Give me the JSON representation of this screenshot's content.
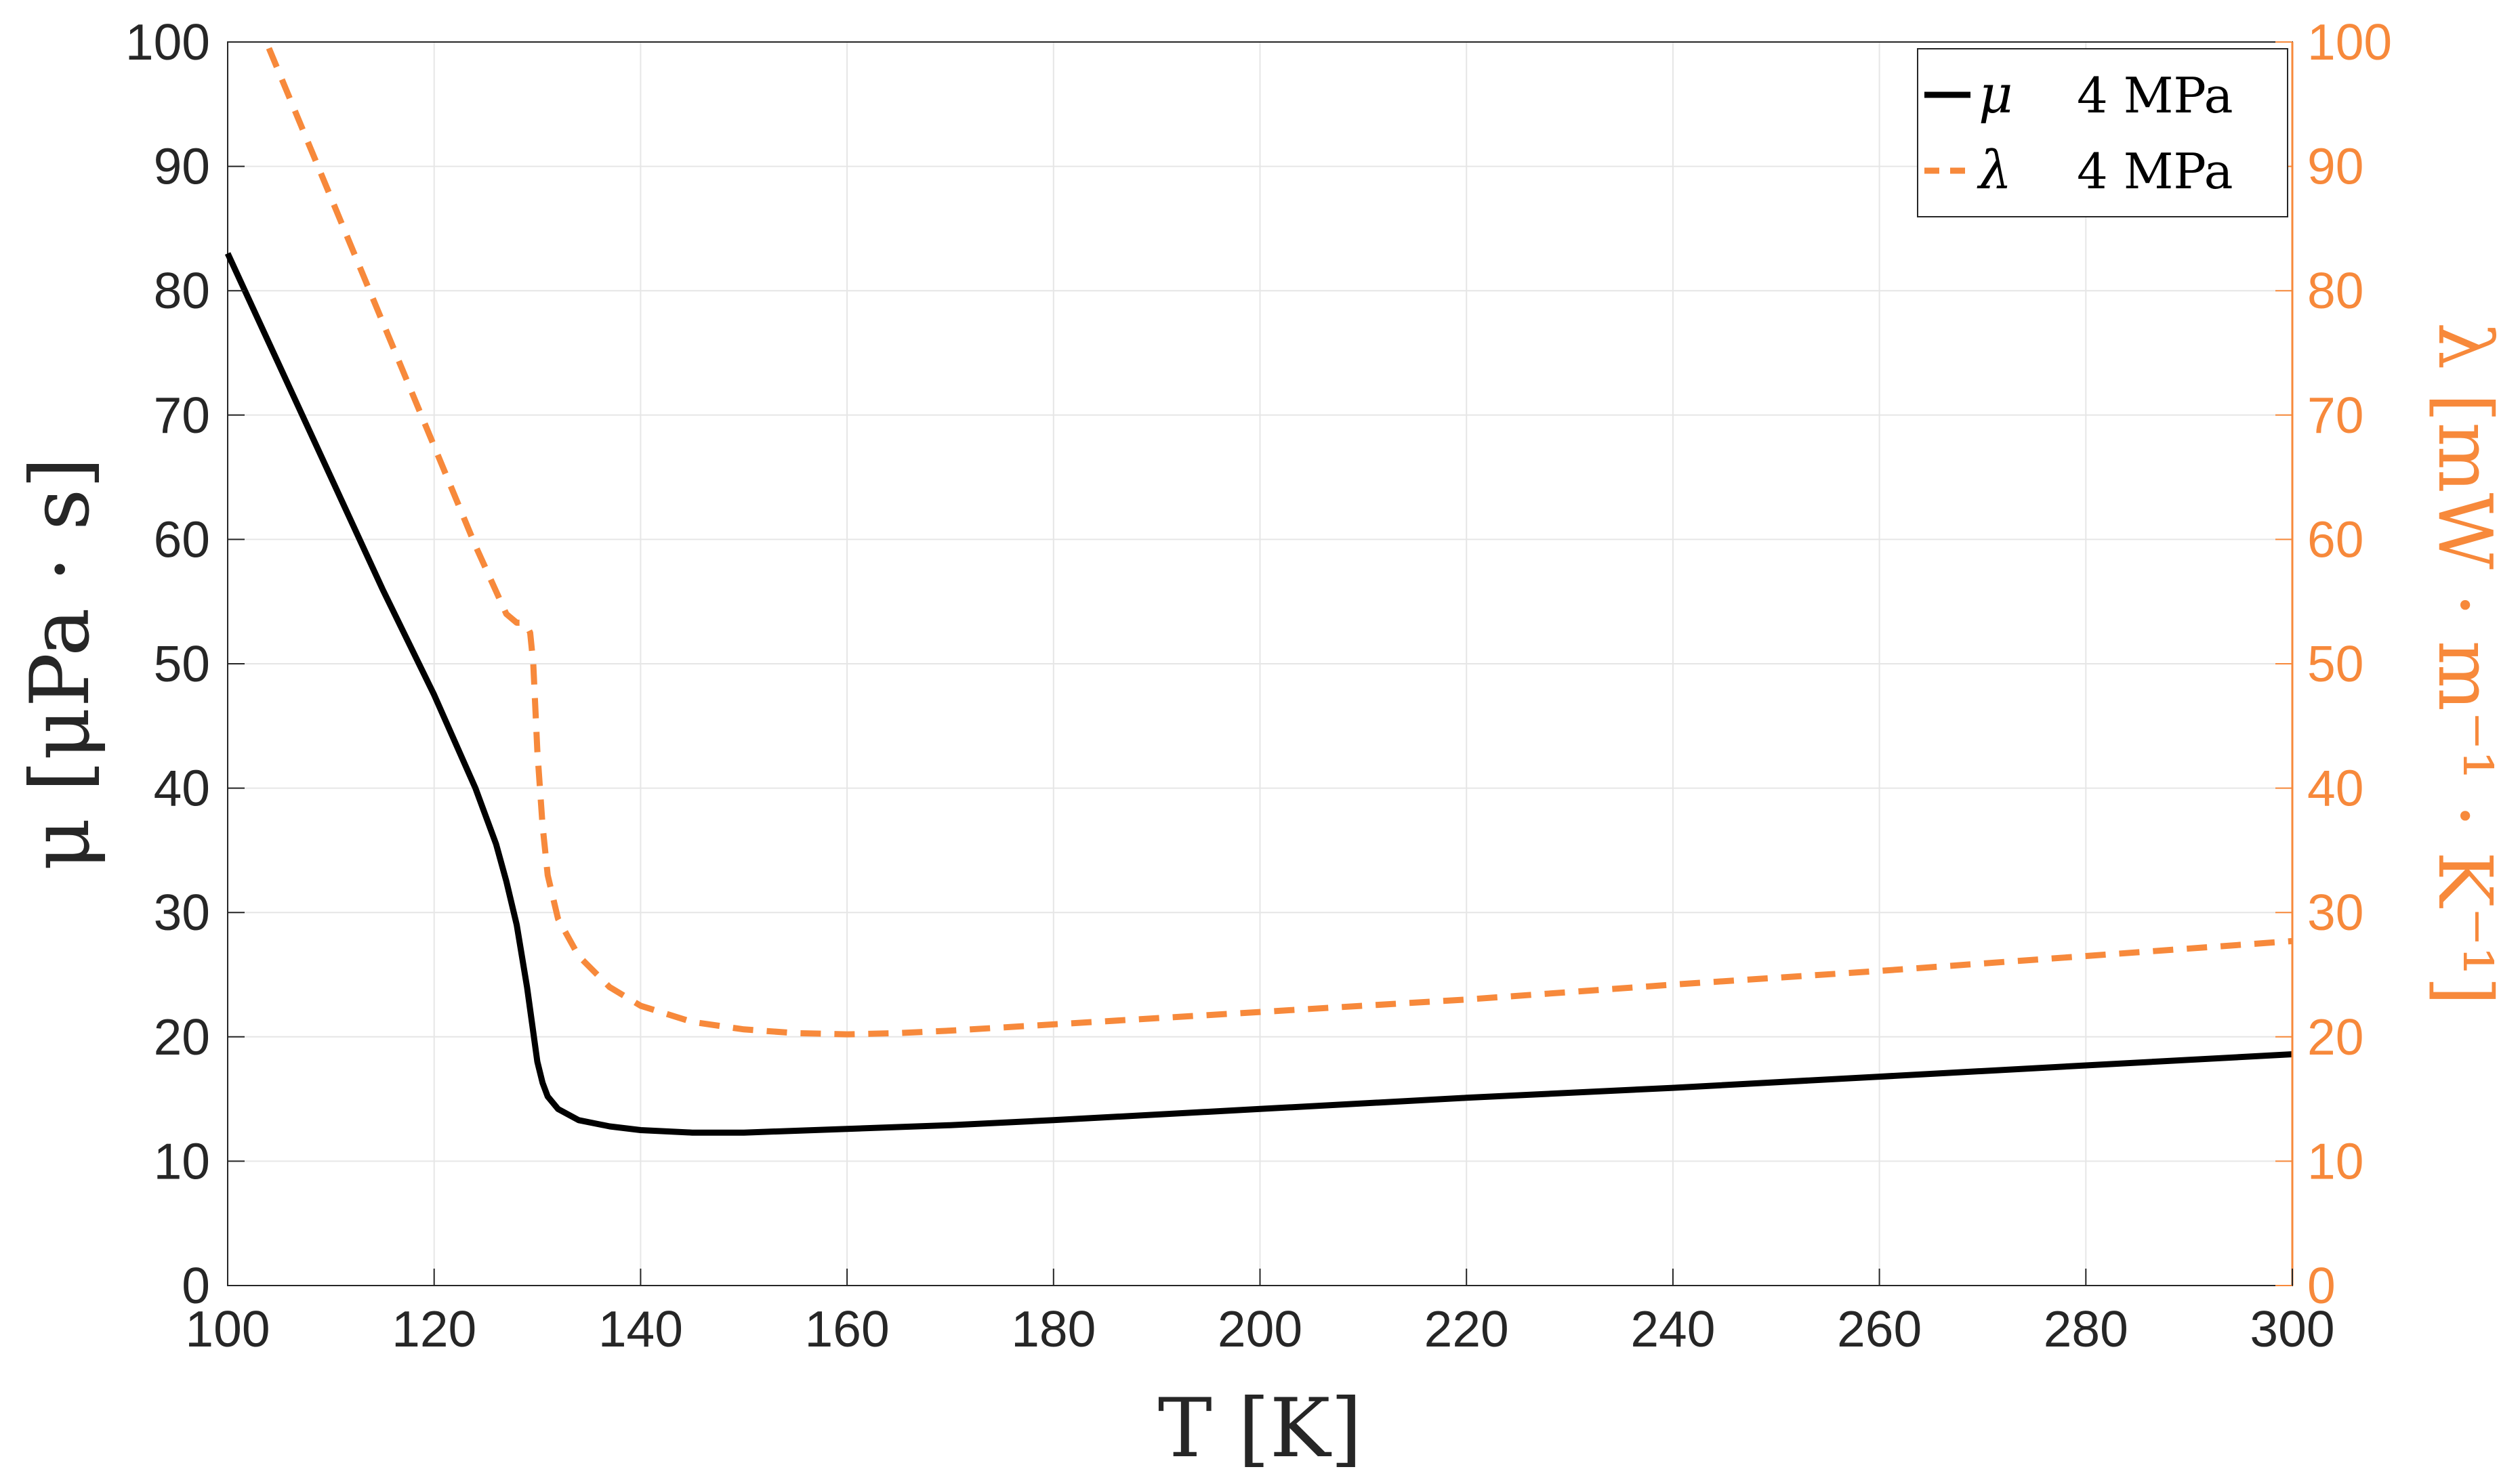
{
  "chart_data": {
    "type": "line",
    "xlabel": "T [K]",
    "ylabel_left": "μ  [μPa · s]",
    "ylabel_right": "λ  [mW · m⁻¹ · K⁻¹]",
    "xlim": [
      100,
      300
    ],
    "ylim_left": [
      0,
      100
    ],
    "ylim_right": [
      0,
      100
    ],
    "x_ticks": [
      100,
      120,
      140,
      160,
      180,
      200,
      220,
      240,
      260,
      280,
      300
    ],
    "y_ticks_left": [
      0,
      10,
      20,
      30,
      40,
      50,
      60,
      70,
      80,
      90,
      100
    ],
    "y_ticks_right": [
      0,
      10,
      20,
      30,
      40,
      50,
      60,
      70,
      80,
      90,
      100
    ],
    "grid": true,
    "legend_position": "top-right",
    "legend": [
      {
        "symbol": "μ",
        "label": "4 MPa"
      },
      {
        "symbol": "λ",
        "label": "4 MPa"
      }
    ],
    "series": [
      {
        "name": "μ 4 MPa",
        "axis": "left",
        "color": "#000000",
        "dash": "solid",
        "x": [
          100,
          105,
          110,
          115,
          120,
          124,
          126,
          127,
          128,
          129,
          129.5,
          130,
          130.5,
          131,
          132,
          134,
          137,
          140,
          145,
          150,
          160,
          170,
          180,
          200,
          220,
          240,
          260,
          280,
          300
        ],
        "y": [
          83,
          74,
          65,
          56,
          47.5,
          40,
          35.5,
          32.5,
          29,
          24,
          21,
          18,
          16.3,
          15.2,
          14.2,
          13.3,
          12.8,
          12.5,
          12.3,
          12.3,
          12.6,
          12.9,
          13.3,
          14.2,
          15.1,
          15.9,
          16.8,
          17.7,
          18.6
        ]
      },
      {
        "name": "λ 4 MPa",
        "axis": "right",
        "color": "#f7893b",
        "dash": "dashed",
        "x": [
          104,
          108,
          112,
          116,
          120,
          124,
          127,
          128,
          128.5,
          129,
          129.3,
          129.6,
          130,
          130.5,
          131,
          132,
          134,
          137,
          140,
          145,
          150,
          155,
          160,
          165,
          170,
          180,
          200,
          220,
          240,
          260,
          280,
          300
        ],
        "y": [
          99.5,
          91.5,
          83.5,
          75.5,
          67.5,
          59.5,
          54,
          53.3,
          53.3,
          53,
          52.5,
          50,
          43,
          37,
          33,
          29.5,
          26.5,
          24,
          22.5,
          21.2,
          20.6,
          20.3,
          20.2,
          20.3,
          20.5,
          21,
          22,
          23,
          24.2,
          25.3,
          26.5,
          27.7
        ]
      }
    ]
  }
}
